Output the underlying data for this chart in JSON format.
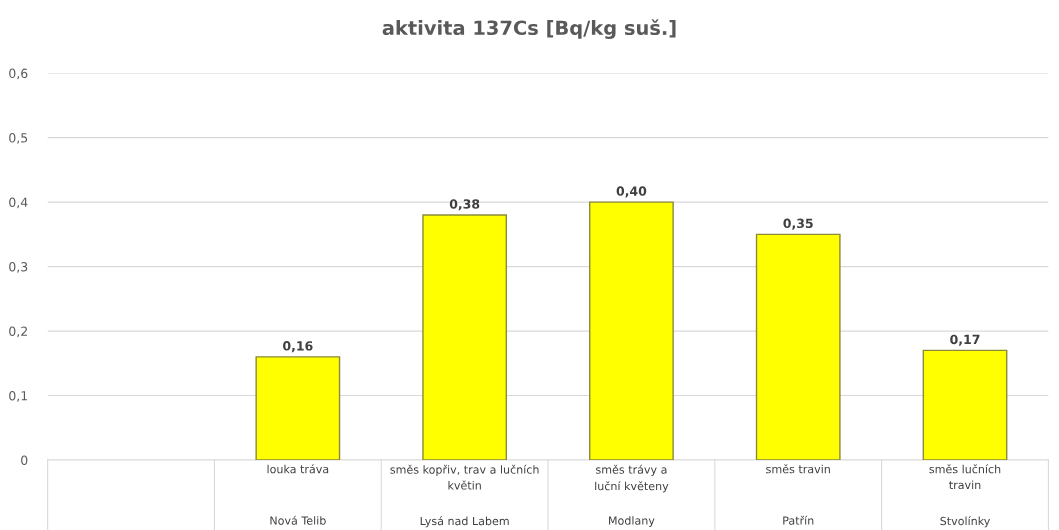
{
  "chart_data": {
    "type": "bar",
    "title": "aktivita 137Cs [Bq/kg suš.]",
    "categories": [
      null,
      "louka tráva\n\nNová Telib",
      "směs kopřiv, trav a lučních\nkvětin\n\nLysá nad Labem",
      "směs trávy a\nluční květeny\n\nModlany",
      "směs travin\n\nPatřín",
      "směs lučních\ntravin\n\nStvolínky"
    ],
    "values": [
      null,
      0.16,
      0.38,
      0.4,
      0.35,
      0.17
    ],
    "value_labels": [
      null,
      "0,16",
      "0,38",
      "0,40",
      "0,35",
      "0,17"
    ],
    "color": "#ffff00",
    "ylim": [
      0,
      0.6
    ],
    "yticks": [
      {
        "value": 0,
        "label": "0"
      },
      {
        "value": 0.1,
        "label": "0,1"
      },
      {
        "value": 0.2,
        "label": "0,2"
      },
      {
        "value": 0.3,
        "label": "0,3"
      },
      {
        "value": 0.4,
        "label": "0,4"
      },
      {
        "value": 0.5,
        "label": "0,5"
      },
      {
        "value": 0.6,
        "label": "0,6"
      }
    ],
    "grid": "y"
  }
}
